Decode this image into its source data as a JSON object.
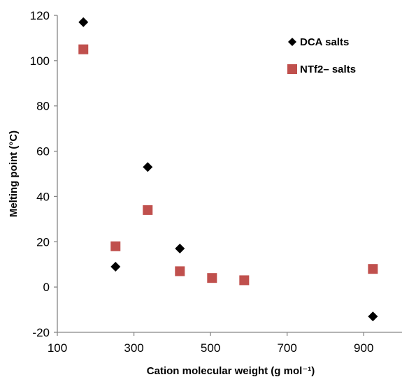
{
  "chart_data": {
    "type": "scatter",
    "title": "",
    "xlabel": "Cation molecular weight (g mol⁻¹)",
    "ylabel": "Melting point (°C)",
    "xlim": [
      100,
      1000
    ],
    "ylim": [
      -20,
      120
    ],
    "x_ticks": [
      100,
      300,
      500,
      700,
      900
    ],
    "y_ticks": [
      -20,
      0,
      20,
      40,
      60,
      80,
      100,
      120
    ],
    "grid": false,
    "legend_position": "top-right",
    "series": [
      {
        "name": "DCA salts",
        "marker": "diamond",
        "color": "#000000",
        "points": [
          {
            "x": 168,
            "y": 117
          },
          {
            "x": 252,
            "y": 9
          },
          {
            "x": 336,
            "y": 53
          },
          {
            "x": 420,
            "y": 17
          },
          {
            "x": 924,
            "y": -13
          }
        ]
      },
      {
        "name": "NTf2– salts",
        "marker": "square",
        "color": "#c0504d",
        "points": [
          {
            "x": 168,
            "y": 105
          },
          {
            "x": 252,
            "y": 18
          },
          {
            "x": 336,
            "y": 34
          },
          {
            "x": 420,
            "y": 7
          },
          {
            "x": 504,
            "y": 4
          },
          {
            "x": 588,
            "y": 3
          },
          {
            "x": 924,
            "y": 8
          }
        ]
      }
    ]
  }
}
